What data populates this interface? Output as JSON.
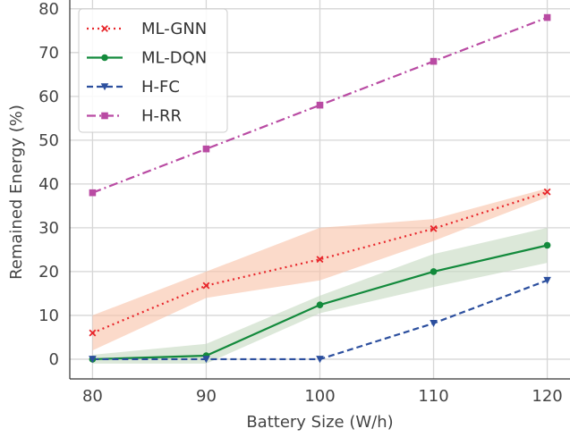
{
  "chart_data": {
    "type": "line",
    "title": "",
    "xlabel": "Battery Size (W/h)",
    "ylabel": "Remained Energy (%)",
    "x": [
      80,
      90,
      100,
      110,
      120
    ],
    "xlim": [
      78,
      122
    ],
    "ylim": [
      -4.5,
      82
    ],
    "x_ticks": [
      80,
      90,
      100,
      110,
      120
    ],
    "y_ticks": [
      0,
      10,
      20,
      30,
      40,
      50,
      60,
      70,
      80
    ],
    "grid": true,
    "legend_position": "top-left",
    "series": [
      {
        "name": "ML-GNN",
        "values": [
          6,
          16.8,
          22.8,
          29.8,
          38.2
        ],
        "band_low": [
          2,
          14,
          18,
          27,
          37
        ],
        "band_high": [
          10,
          20,
          30,
          32,
          39
        ],
        "color": "#e8262b",
        "band_color": "#f9c1a6",
        "dash": "dotted",
        "marker": "x"
      },
      {
        "name": "ML-DQN",
        "values": [
          0,
          0.8,
          12.4,
          20,
          26
        ],
        "band_low": [
          -1,
          -1,
          10.5,
          16.5,
          22
        ],
        "band_high": [
          1,
          3.5,
          14.5,
          24,
          30
        ],
        "color": "#138a3c",
        "band_color": "#c4d9bf",
        "dash": "solid",
        "marker": "circle"
      },
      {
        "name": "H-FC",
        "values": [
          0,
          0,
          0,
          8.2,
          18
        ],
        "color": "#2c4f9e",
        "dash": "dashed",
        "marker": "triangle-down"
      },
      {
        "name": "H-RR",
        "values": [
          38,
          48,
          58,
          68,
          78
        ],
        "color": "#b94ba3",
        "dash": "dashdot",
        "marker": "square"
      }
    ]
  }
}
